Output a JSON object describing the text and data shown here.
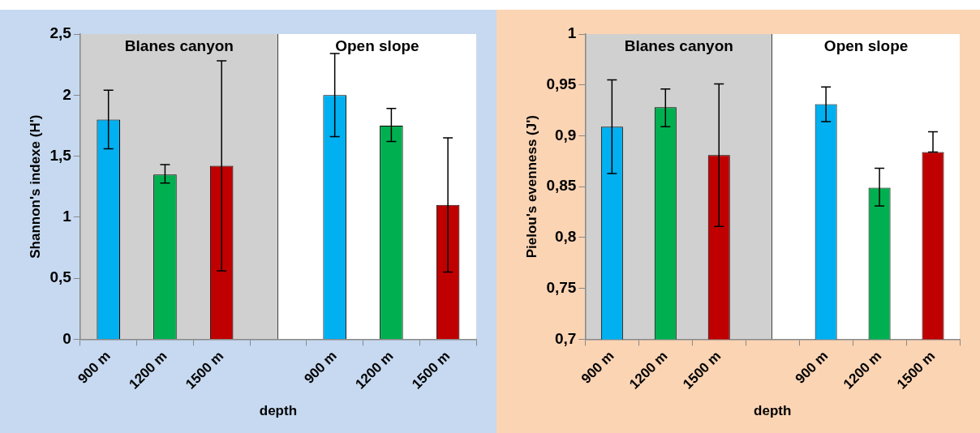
{
  "chart_data": [
    {
      "type": "bar",
      "xlabel": "depth",
      "ylabel": "Shannon's indexe (H')",
      "categories": [
        "900 m",
        "1200 m",
        "1500 m",
        null,
        "900 m",
        "1200 m",
        "1500 m"
      ],
      "values": [
        1.8,
        1.35,
        1.42,
        null,
        2.0,
        1.75,
        1.1
      ],
      "colors": [
        "#00b0f0",
        "#00b050",
        "#c00000",
        null,
        "#00b0f0",
        "#00b050",
        "#c00000"
      ],
      "errors": [
        [
          1.56,
          2.04
        ],
        [
          1.28,
          1.43
        ],
        [
          0.56,
          2.28
        ],
        null,
        [
          1.66,
          2.34
        ],
        [
          1.62,
          1.89
        ],
        [
          0.55,
          1.65
        ]
      ],
      "ylim": [
        0,
        2.5
      ],
      "yticks": [
        0,
        {
          "value": 0.5,
          "label": "0,5"
        },
        1,
        {
          "value": 1.5,
          "label": "1,5"
        },
        2,
        {
          "value": 2.5,
          "label": "2,5"
        }
      ],
      "annotations": [
        "Blanes canyon",
        "Open slope"
      ],
      "grid": false,
      "legend": false
    },
    {
      "type": "bar",
      "xlabel": "depth",
      "ylabel": "Pielou's evenness (J')",
      "categories": [
        "900 m",
        "1200 m",
        "1500 m",
        null,
        "900 m",
        "1200 m",
        "1500 m"
      ],
      "values": [
        0.909,
        0.928,
        0.881,
        null,
        0.931,
        0.849,
        0.884
      ],
      "colors": [
        "#00b0f0",
        "#00b050",
        "#c00000",
        null,
        "#00b0f0",
        "#00b050",
        "#c00000"
      ],
      "errors": [
        [
          0.863,
          0.955
        ],
        [
          0.909,
          0.946
        ],
        [
          0.811,
          0.951
        ],
        null,
        [
          0.914,
          0.948
        ],
        [
          0.831,
          0.868
        ],
        [
          0.884,
          0.904
        ]
      ],
      "ylim": [
        0.7,
        1
      ],
      "yticks": [
        {
          "value": 0.7,
          "label": "0,7"
        },
        {
          "value": 0.75,
          "label": "0,75"
        },
        {
          "value": 0.8,
          "label": "0,8"
        },
        {
          "value": 0.85,
          "label": "0,85"
        },
        {
          "value": 0.9,
          "label": "0,9"
        },
        {
          "value": 0.95,
          "label": "0,95"
        },
        1
      ],
      "annotations": [
        "Blanes canyon",
        "Open slope"
      ],
      "grid": false,
      "legend": false
    }
  ]
}
